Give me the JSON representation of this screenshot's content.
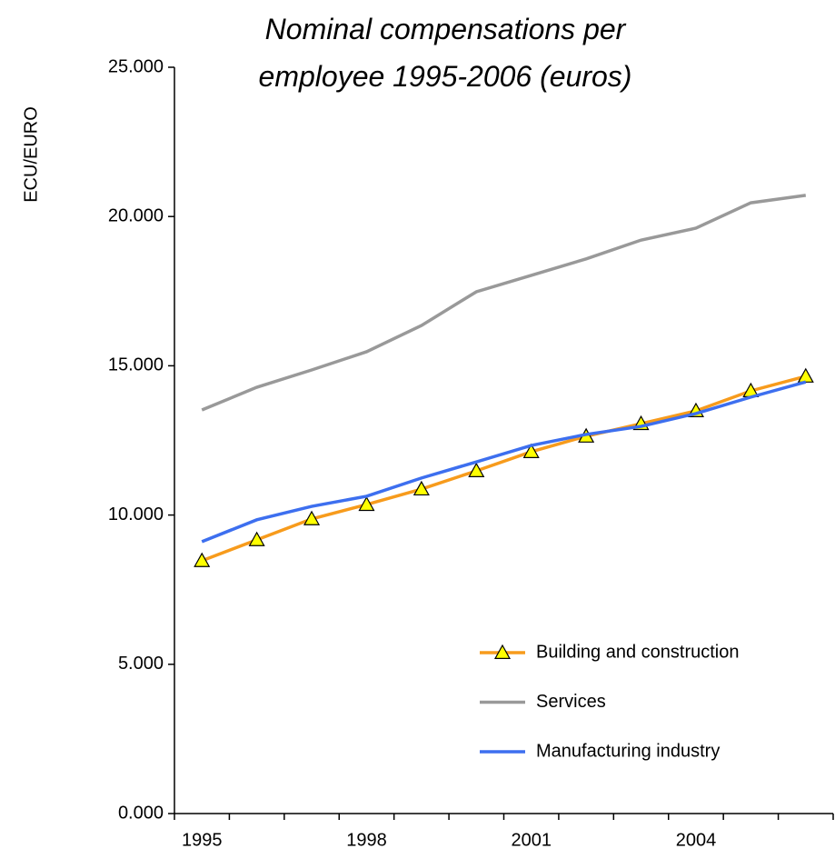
{
  "chart_data": {
    "type": "line",
    "title": "Nominal compensations per employee 1995-2006 (euros)",
    "y_label": "ECU/EURO",
    "categories": [
      "1995",
      null,
      null,
      "1998",
      null,
      null,
      "2001",
      null,
      null,
      "2004",
      null,
      null
    ],
    "series": [
      {
        "name": "Building and construction",
        "color": "#f79b1c",
        "marker": "triangle",
        "marker_color": "#ffff00",
        "values": [
          8470,
          9170,
          9870,
          10350,
          10870,
          11480,
          12120,
          12640,
          13060,
          13490,
          14160,
          14650
        ]
      },
      {
        "name": "Services",
        "color": "#999999",
        "values": [
          13520,
          14280,
          14860,
          15470,
          16350,
          17480,
          18030,
          18580,
          19210,
          19610,
          20460,
          20710
        ]
      },
      {
        "name": "Manufacturing industry",
        "color": "#3d6fef",
        "values": [
          9110,
          9840,
          10290,
          10630,
          11240,
          11780,
          12330,
          12700,
          12970,
          13400,
          13950,
          14460
        ]
      }
    ],
    "ylim": [
      0,
      25000
    ],
    "yticks": [
      {
        "value": 0,
        "label": "0.000"
      },
      {
        "value": 5000,
        "label": "5.000"
      },
      {
        "value": 10000,
        "label": "10.000"
      },
      {
        "value": 15000,
        "label": "15.000"
      },
      {
        "value": 20000,
        "label": "20.000"
      },
      {
        "value": 25000,
        "label": "25.000"
      }
    ],
    "legend": "lower right"
  }
}
